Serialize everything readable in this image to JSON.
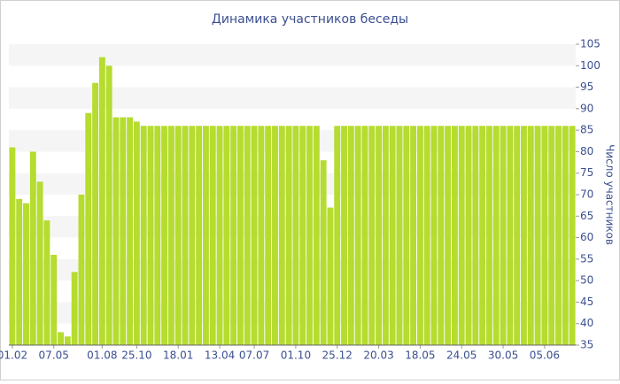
{
  "chart_data": {
    "type": "bar",
    "title": "Динамика участников беседы",
    "y_axis_label": "Число участников",
    "color": "#b5dc2f",
    "grid": "bands",
    "y_axis_side": "right",
    "ylim": [
      35,
      105
    ],
    "yticks": [
      35,
      40,
      45,
      50,
      55,
      60,
      65,
      70,
      75,
      80,
      85,
      90,
      95,
      100,
      105
    ],
    "categories": [
      "01.02",
      null,
      null,
      null,
      null,
      null,
      "07.05",
      null,
      null,
      null,
      null,
      null,
      null,
      "01.08",
      null,
      null,
      null,
      null,
      "25.10",
      null,
      null,
      null,
      null,
      null,
      "18.01",
      null,
      null,
      null,
      null,
      null,
      "13.04",
      null,
      null,
      null,
      null,
      "07.07",
      null,
      null,
      null,
      null,
      null,
      "01.10",
      null,
      null,
      null,
      null,
      null,
      "25.12",
      null,
      null,
      null,
      null,
      null,
      "20.03",
      null,
      null,
      null,
      null,
      null,
      "18.05",
      null,
      null,
      null,
      null,
      null,
      "24.05",
      null,
      null,
      null,
      null,
      null,
      "30.05",
      null,
      null,
      null,
      null,
      null,
      "05.06",
      null,
      null,
      null,
      null
    ],
    "values": [
      81,
      69,
      68,
      80,
      73,
      64,
      56,
      38,
      37,
      52,
      70,
      89,
      96,
      102,
      100,
      88,
      88,
      88,
      87,
      86,
      86,
      86,
      86,
      86,
      86,
      86,
      86,
      86,
      86,
      86,
      86,
      86,
      86,
      86,
      86,
      86,
      86,
      86,
      86,
      86,
      86,
      86,
      86,
      86,
      86,
      78,
      67,
      86,
      86,
      86,
      86,
      86,
      86,
      86,
      86,
      86,
      86,
      86,
      86,
      86,
      86,
      86,
      86,
      86,
      86,
      86,
      86,
      86,
      86,
      86,
      86,
      86,
      86,
      86,
      86,
      86,
      86,
      86,
      86,
      86,
      86,
      86
    ]
  }
}
